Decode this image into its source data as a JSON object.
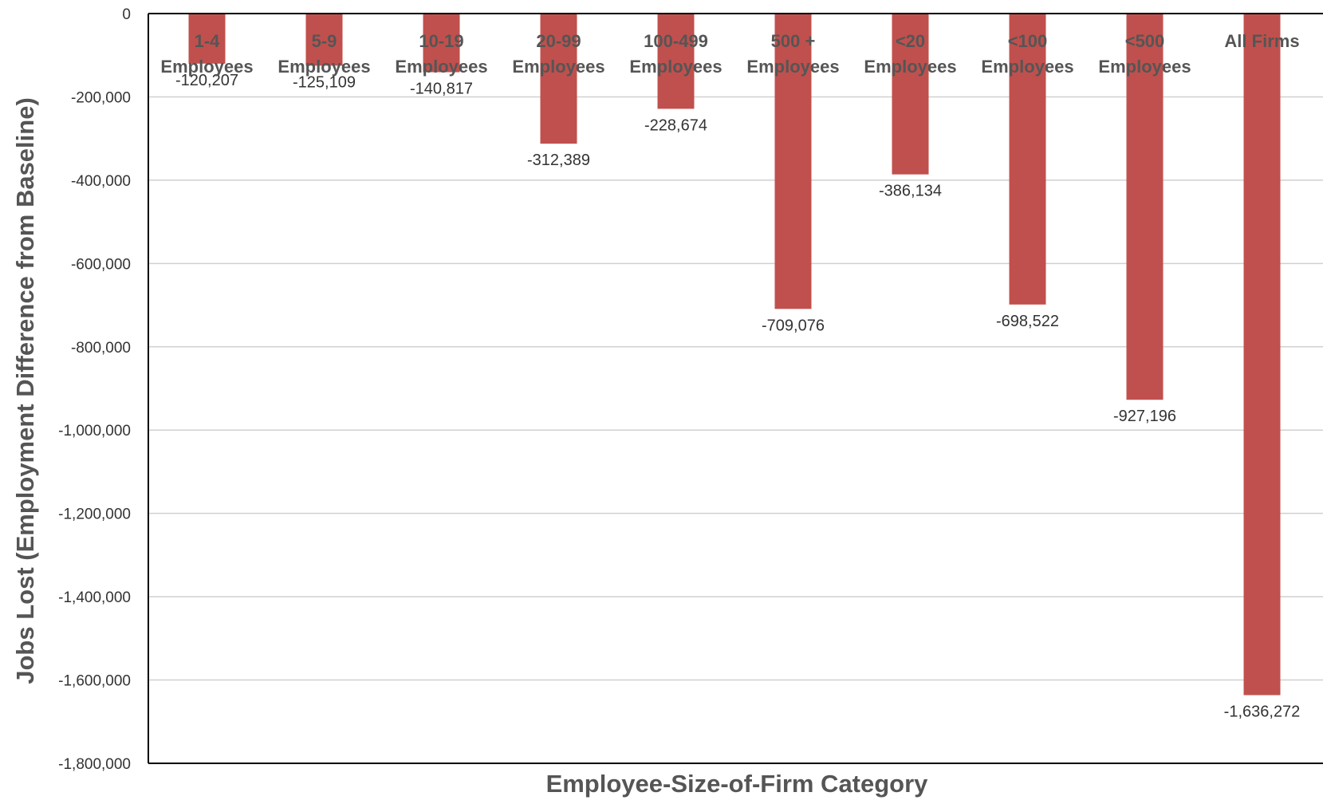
{
  "chart_data": {
    "type": "bar",
    "title": "",
    "xlabel": "Employee-Size-of-Firm Category",
    "ylabel": "Jobs Lost (Employment Difference from Baseline)",
    "ylim": [
      -1800000,
      0
    ],
    "yticks": [
      0,
      -200000,
      -400000,
      -600000,
      -800000,
      -1000000,
      -1200000,
      -1400000,
      -1600000,
      -1800000
    ],
    "ytick_labels": [
      "0",
      "-200,000",
      "-400,000",
      "-600,000",
      "-800,000",
      "-1,000,000",
      "-1,200,000",
      "-1,400,000",
      "-1,600,000",
      "-1,800,000"
    ],
    "categories": [
      [
        "1-4",
        "Employees"
      ],
      [
        "5-9",
        "Employees"
      ],
      [
        "10-19",
        "Employees"
      ],
      [
        "20-99",
        "Employees"
      ],
      [
        "100-499",
        "Employees"
      ],
      [
        "500 +",
        "Employees"
      ],
      [
        "<20",
        "Employees"
      ],
      [
        "<100",
        "Employees"
      ],
      [
        "<500",
        "Employees"
      ],
      [
        "All Firms"
      ]
    ],
    "values": [
      -120207,
      -125109,
      -140817,
      -312389,
      -228674,
      -709076,
      -386134,
      -698522,
      -927196,
      -1636272
    ],
    "value_labels": [
      "-120,207",
      "-125,109",
      "-140,817",
      "-312,389",
      "-228,674",
      "-709,076",
      "-386,134",
      "-698,522",
      "-927,196",
      "-1,636,272"
    ],
    "bar_color": "#c0504d",
    "grid": true,
    "legend": "none"
  }
}
